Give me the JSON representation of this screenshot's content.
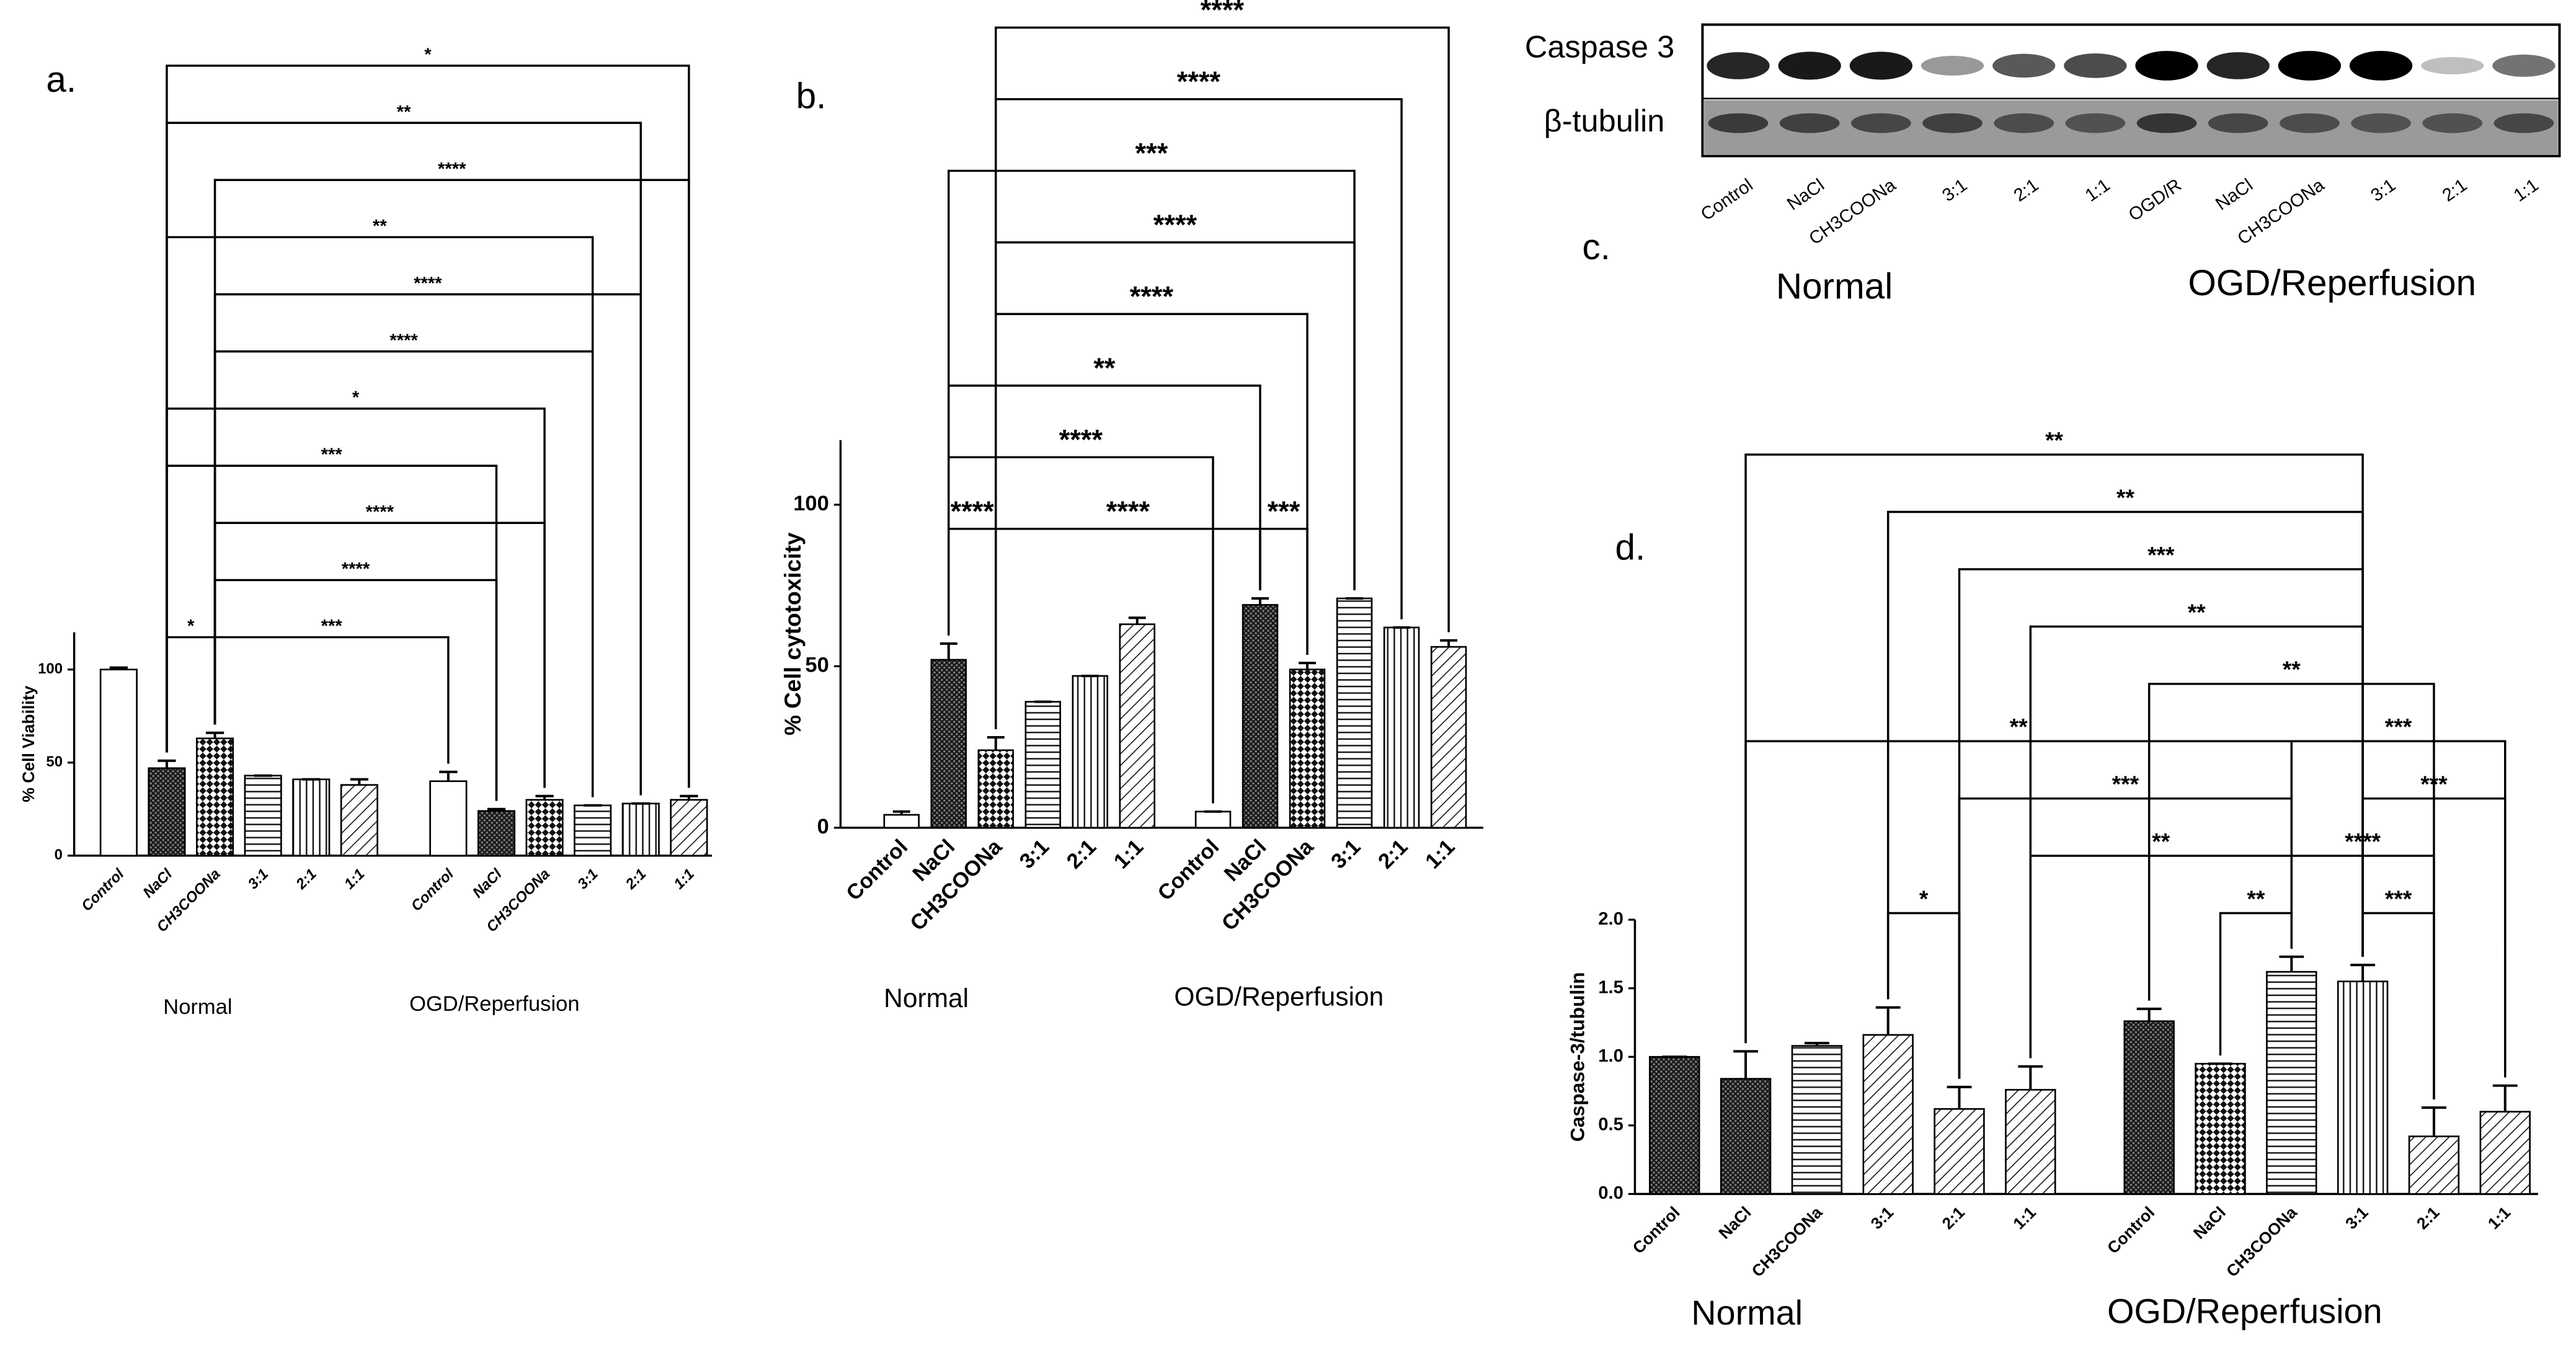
{
  "chart_data": [
    {
      "type": "bar",
      "panel_label": "a.",
      "ylabel": "% Cell Viability",
      "categories": [
        "Control",
        "NaCl",
        "CH3COONa",
        "3:1",
        "2:1",
        "1:1",
        "Control",
        "NaCl",
        "CH3COONa",
        "3:1",
        "2:1",
        "1:1"
      ],
      "values": [
        100,
        47,
        63,
        43,
        41,
        38,
        40,
        24,
        30,
        27,
        28,
        30
      ],
      "errors": [
        1,
        4,
        3,
        0,
        0,
        3,
        5,
        1,
        2,
        0,
        0,
        2
      ],
      "patterns": [
        "none",
        "crosshatch",
        "checker",
        "horizontal",
        "vertical",
        "diagonal",
        "none",
        "crosshatch",
        "checker",
        "horizontal",
        "vertical",
        "diagonal"
      ],
      "ylim": [
        0,
        120
      ],
      "yticks": [
        0,
        50,
        100
      ],
      "groups": [
        "Normal",
        "OGD/Reperfusion"
      ],
      "comparisons": [
        {
          "label": "*",
          "between": [
            1,
            2
          ]
        },
        {
          "label": "***",
          "between": [
            2,
            6
          ]
        },
        {
          "label": "****",
          "between": [
            2,
            7
          ]
        },
        {
          "label": "****",
          "between": [
            2,
            8
          ]
        },
        {
          "label": "***",
          "between": [
            1,
            7
          ]
        },
        {
          "label": "*",
          "between": [
            1,
            8
          ]
        },
        {
          "label": "****",
          "between": [
            2,
            9
          ]
        },
        {
          "label": "****",
          "between": [
            2,
            10
          ]
        },
        {
          "label": "**",
          "between": [
            1,
            9
          ]
        },
        {
          "label": "****",
          "between": [
            2,
            11
          ]
        },
        {
          "label": "**",
          "between": [
            1,
            10
          ]
        },
        {
          "label": "*",
          "between": [
            1,
            11
          ]
        }
      ]
    },
    {
      "type": "bar",
      "panel_label": "b.",
      "ylabel": "% Cell cytotoxicity",
      "categories": [
        "Control",
        "NaCl",
        "CH3COONa",
        "3:1",
        "2:1",
        "1:1",
        "Control",
        "NaCl",
        "CH3COONa",
        "3:1",
        "2:1",
        "1:1"
      ],
      "values": [
        4,
        52,
        24,
        39,
        47,
        63,
        5,
        69,
        49,
        71,
        62,
        56
      ],
      "errors": [
        1,
        5,
        4,
        0,
        0,
        2,
        0,
        2,
        2,
        0,
        0,
        2
      ],
      "patterns": [
        "none",
        "crosshatch",
        "checker",
        "horizontal",
        "vertical",
        "diagonal",
        "none",
        "crosshatch",
        "checker",
        "horizontal",
        "vertical",
        "diagonal"
      ],
      "ylim": [
        0,
        120
      ],
      "yticks": [
        0,
        50,
        100
      ],
      "groups": [
        "Normal",
        "OGD/Reperfusion"
      ],
      "comparisons": [
        {
          "label": "****",
          "between": [
            1,
            2
          ]
        },
        {
          "label": "****",
          "between": [
            2,
            7
          ]
        },
        {
          "label": "***",
          "between": [
            7,
            8
          ]
        },
        {
          "label": "****",
          "between": [
            1,
            6
          ]
        },
        {
          "label": "**",
          "between": [
            1,
            7
          ]
        },
        {
          "label": "****",
          "between": [
            2,
            8
          ]
        },
        {
          "label": "****",
          "between": [
            2,
            9
          ]
        },
        {
          "label": "***",
          "between": [
            1,
            9
          ]
        },
        {
          "label": "****",
          "between": [
            2,
            10
          ]
        },
        {
          "label": "****",
          "between": [
            2,
            11
          ]
        }
      ]
    },
    {
      "type": "bar",
      "panel_label": "d.",
      "ylabel": "Caspase-3/tubulin",
      "categories": [
        "Control",
        "NaCl",
        "CH3COONa",
        "3:1",
        "2:1",
        "1:1",
        "Control",
        "NaCl",
        "CH3COONa",
        "3:1",
        "2:1",
        "1:1"
      ],
      "values": [
        1.0,
        0.84,
        1.08,
        1.16,
        0.62,
        0.76,
        1.26,
        0.95,
        1.62,
        1.55,
        0.42,
        0.6
      ],
      "errors": [
        0,
        0.2,
        0.02,
        0.2,
        0.16,
        0.17,
        0.09,
        0,
        0.11,
        0.12,
        0.21,
        0.19
      ],
      "patterns": [
        "crosshatch",
        "crosshatch",
        "horizontal",
        "diagonal",
        "diagonal",
        "diagonal",
        "crosshatch",
        "checker",
        "horizontal",
        "vertical",
        "diagonal",
        "diagonal"
      ],
      "ylim": [
        0,
        2.0
      ],
      "yticks": [
        {
          "value": 0,
          "label": "0.0"
        },
        0.5,
        {
          "value": 1,
          "label": "1.0"
        },
        1.5,
        {
          "value": 2,
          "label": "2.0"
        }
      ],
      "groups": [
        "Normal",
        "OGD/Reperfusion"
      ],
      "comparisons": [
        {
          "label": "*",
          "between": [
            3,
            4
          ]
        },
        {
          "label": "**",
          "between": [
            7,
            8
          ]
        },
        {
          "label": "***",
          "between": [
            9,
            10
          ]
        },
        {
          "label": "**",
          "between": [
            5,
            8
          ]
        },
        {
          "label": "****",
          "between": [
            8,
            10
          ]
        },
        {
          "label": "***",
          "between": [
            4,
            8
          ]
        },
        {
          "label": "***",
          "between": [
            9,
            11
          ]
        },
        {
          "label": "**",
          "between": [
            1,
            8
          ]
        },
        {
          "label": "***",
          "between": [
            8,
            11
          ]
        },
        {
          "label": "**",
          "between": [
            6,
            10
          ]
        },
        {
          "label": "**",
          "between": [
            5,
            9
          ]
        },
        {
          "label": "***",
          "between": [
            4,
            9
          ]
        },
        {
          "label": "**",
          "between": [
            3,
            9
          ]
        },
        {
          "label": "**",
          "between": [
            1,
            9
          ]
        }
      ]
    }
  ],
  "blot": {
    "panel_label": "c.",
    "rows": [
      "Caspase 3",
      "β-tubulin"
    ],
    "lanes": [
      "Control",
      "NaCl",
      "CH3COONa",
      "3:1",
      "2:1",
      "1:1",
      "OGD/R",
      "NaCl",
      "CH3COONa",
      "3:1",
      "2:1",
      "1:1"
    ],
    "groups": [
      "Normal",
      "OGD/Reperfusion"
    ]
  }
}
